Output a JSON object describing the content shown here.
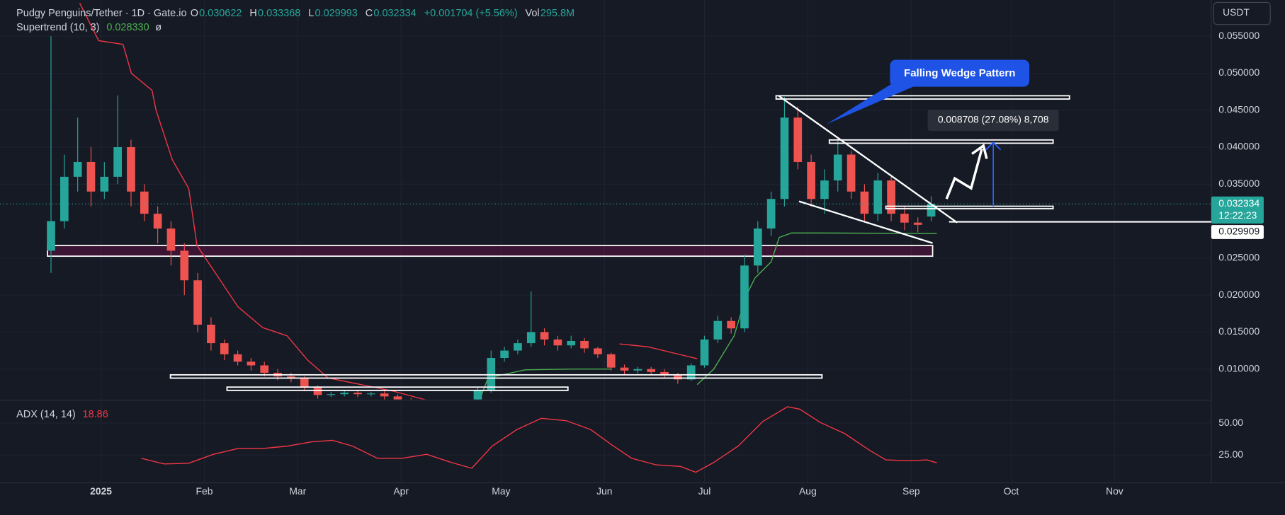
{
  "chart_data": [
    {
      "type": "candlestick",
      "title": "Pudgy Penguins/Tether · 1D · Gate.io",
      "ohlc_labels": [
        "O",
        "H",
        "L",
        "C"
      ],
      "change": "+0.001704 (+5.56%)",
      "volume_label": "Vol",
      "volume": "295.8M",
      "currency": "USDT",
      "countdown": "12:22:23",
      "up_color": "#26a69a",
      "down_color": "#ef5350",
      "x": [
        -15,
        -11,
        -7,
        -3,
        1,
        5,
        9,
        13,
        17,
        21,
        25,
        29,
        33,
        37,
        41,
        45,
        49,
        53,
        57,
        61,
        65,
        69,
        73,
        77,
        81,
        85,
        89,
        93,
        97,
        101,
        105,
        109,
        113,
        117,
        121,
        125,
        129,
        133,
        137,
        141,
        145,
        149,
        153,
        157,
        161,
        165,
        169,
        173,
        177,
        181,
        185,
        189,
        193,
        197,
        201,
        205,
        209,
        213,
        217,
        221,
        225,
        229,
        233,
        237,
        241,
        245,
        249
      ],
      "open": [
        0.026,
        0.03,
        0.036,
        0.038,
        0.034,
        0.036,
        0.04,
        0.034,
        0.031,
        0.029,
        0.026,
        0.022,
        0.016,
        0.0135,
        0.012,
        0.011,
        0.0105,
        0.0095,
        0.009,
        0.0088,
        0.0075,
        0.0065,
        0.0066,
        0.0068,
        0.0066,
        0.0067,
        0.0063,
        0.0058,
        0.0052,
        0.005,
        0.0049,
        0.005,
        0.0052,
        0.0072,
        0.0115,
        0.0125,
        0.0135,
        0.015,
        0.014,
        0.0132,
        0.0138,
        0.0128,
        0.012,
        0.0102,
        0.0098,
        0.01,
        0.0096,
        0.0092,
        0.0086,
        0.0105,
        0.014,
        0.0165,
        0.0155,
        0.024,
        0.029,
        0.033,
        0.044,
        0.038,
        0.033,
        0.0355,
        0.039,
        0.034,
        0.031,
        0.0355,
        0.031,
        0.0298,
        0.030622
      ],
      "high": [
        0.055,
        0.039,
        0.044,
        0.04,
        0.038,
        0.047,
        0.041,
        0.035,
        0.032,
        0.03,
        0.027,
        0.023,
        0.017,
        0.014,
        0.0125,
        0.0115,
        0.011,
        0.01,
        0.0095,
        0.009,
        0.0078,
        0.0069,
        0.0071,
        0.0071,
        0.0069,
        0.007,
        0.0066,
        0.0061,
        0.0055,
        0.0053,
        0.0052,
        0.0054,
        0.0075,
        0.0125,
        0.013,
        0.014,
        0.0205,
        0.0155,
        0.0145,
        0.0145,
        0.0142,
        0.013,
        0.0122,
        0.0106,
        0.0103,
        0.0103,
        0.01,
        0.0095,
        0.0108,
        0.0145,
        0.0172,
        0.017,
        0.0255,
        0.03,
        0.034,
        0.0468,
        0.0455,
        0.039,
        0.037,
        0.041,
        0.0395,
        0.035,
        0.0365,
        0.036,
        0.032,
        0.0305,
        0.033368
      ],
      "low": [
        0.023,
        0.029,
        0.034,
        0.032,
        0.033,
        0.035,
        0.032,
        0.03,
        0.027,
        0.024,
        0.02,
        0.015,
        0.0125,
        0.0112,
        0.0105,
        0.0098,
        0.009,
        0.0085,
        0.0082,
        0.007,
        0.006,
        0.0062,
        0.0063,
        0.0062,
        0.0063,
        0.0059,
        0.0054,
        0.0049,
        0.0047,
        0.0046,
        0.0047,
        0.0049,
        0.005,
        0.0068,
        0.011,
        0.012,
        0.013,
        0.0132,
        0.0125,
        0.0128,
        0.0122,
        0.0115,
        0.0098,
        0.0092,
        0.0094,
        0.0092,
        0.0088,
        0.008,
        0.0084,
        0.0102,
        0.0135,
        0.0148,
        0.015,
        0.023,
        0.028,
        0.032,
        0.037,
        0.032,
        0.031,
        0.034,
        0.033,
        0.03,
        0.03,
        0.03,
        0.0288,
        0.0285,
        0.029993
      ],
      "close": [
        0.03,
        0.036,
        0.038,
        0.034,
        0.036,
        0.04,
        0.034,
        0.031,
        0.029,
        0.026,
        0.022,
        0.016,
        0.0135,
        0.012,
        0.011,
        0.0105,
        0.0095,
        0.009,
        0.0088,
        0.0075,
        0.0065,
        0.0066,
        0.0068,
        0.0066,
        0.0067,
        0.0063,
        0.0058,
        0.0052,
        0.005,
        0.0049,
        0.005,
        0.0052,
        0.0072,
        0.0115,
        0.0125,
        0.0135,
        0.015,
        0.014,
        0.0132,
        0.0138,
        0.0128,
        0.012,
        0.0102,
        0.0098,
        0.01,
        0.0096,
        0.0092,
        0.0086,
        0.0105,
        0.014,
        0.0165,
        0.0155,
        0.024,
        0.029,
        0.033,
        0.044,
        0.038,
        0.033,
        0.0355,
        0.039,
        0.034,
        0.031,
        0.0355,
        0.031,
        0.0298,
        0.0295,
        0.032334
      ],
      "indicator": {
        "label": "Supertrend (10, 3)",
        "value_label": "0.028330",
        "symbol": "ø",
        "series": [
          {
            "color": "#f23645",
            "x": [
              -6.4,
              -0.7,
              6.6,
              9.1,
              15.3,
              16.5,
              21.4,
              26.3,
              28.8,
              33.7,
              41.1,
              48.5,
              55.8,
              62,
              68.1,
              78,
              87.8,
              97.7,
              111.2
            ],
            "values": [
              0.0595,
              0.0544,
              0.0539,
              0.05,
              0.0477,
              0.045,
              0.0383,
              0.0344,
              0.0267,
              0.0234,
              0.0184,
              0.0156,
              0.0145,
              0.0112,
              0.0088,
              0.0079,
              0.007,
              0.0058,
              0.0056
            ]
          },
          {
            "color": "#4caf50",
            "x": [
              111.2,
              113.7,
              116.1,
              127.2,
              141.9,
              153
            ],
            "values": [
              0.0056,
              0.006,
              0.0088,
              0.0099,
              0.01,
              0.01
            ]
          },
          {
            "color": "#f23645",
            "x": [
              155.5,
              164.1,
              171.5,
              178.8
            ],
            "values": [
              0.0134,
              0.013,
              0.0122,
              0.0114
            ]
          },
          {
            "color": "#4caf50",
            "x": [
              178.8,
              183.8,
              189.9,
              193.6,
              196.1,
              201,
              203.4,
              207.1,
              215.7,
              250.7
            ],
            "values": [
              0.0079,
              0.01,
              0.0145,
              0.02,
              0.0223,
              0.0245,
              0.0278,
              0.0284,
              0.0284,
              0.02833
            ]
          }
        ]
      },
      "price_line": {
        "value": 0.029909
      },
      "annotations": {
        "pattern": "Falling Wedge Pattern",
        "measure": "0.008708 (27.08%) 8,708"
      },
      "xlim": [
        -30.3,
        333
      ],
      "xticks": [
        {
          "value": 0,
          "label": "2025"
        },
        {
          "value": 31,
          "label": "Feb"
        },
        {
          "value": 59,
          "label": "Mar"
        },
        {
          "value": 90,
          "label": "Apr"
        },
        {
          "value": 120,
          "label": "May"
        },
        {
          "value": 151,
          "label": "Jun"
        },
        {
          "value": 181,
          "label": "Jul"
        },
        {
          "value": 212,
          "label": "Aug"
        },
        {
          "value": 243,
          "label": "Sep"
        },
        {
          "value": 273,
          "label": "Oct"
        },
        {
          "value": 304,
          "label": "Nov"
        }
      ],
      "ylim": [
        0.0059,
        0.0599
      ],
      "yticks": [
        {
          "value": 0.055,
          "label": "0.055000"
        },
        {
          "value": 0.05,
          "label": "0.050000"
        },
        {
          "value": 0.045,
          "label": "0.045000"
        },
        {
          "value": 0.04,
          "label": "0.040000"
        },
        {
          "value": 0.035,
          "label": "0.035000"
        },
        {
          "value": 0.025,
          "label": "0.025000"
        },
        {
          "value": 0.02,
          "label": "0.020000"
        },
        {
          "value": 0.015,
          "label": "0.015000"
        },
        {
          "value": 0.01,
          "label": "0.010000"
        }
      ],
      "grid": true
    },
    {
      "type": "line",
      "title": "ADX (14, 14)",
      "color": "#f23645",
      "x": [
        12.1,
        18.9,
        26.3,
        33.7,
        41.1,
        48.5,
        55.8,
        63.2,
        69.4,
        75.5,
        82.9,
        90.3,
        97.7,
        105,
        111.2,
        117.3,
        124.7,
        132.1,
        139.5,
        146.9,
        153,
        159.2,
        166.5,
        173.9,
        178.4,
        183.8,
        191.1,
        198.5,
        205.9,
        209.6,
        215.7,
        223.1,
        230.5,
        235.4,
        242.8,
        247.7,
        250.7
      ],
      "values": [
        22.4,
        18,
        18.6,
        25.6,
        30.1,
        30.1,
        32,
        35.3,
        36.5,
        32,
        22.4,
        22.4,
        25.6,
        19.2,
        14.7,
        32,
        44.9,
        53.8,
        51.9,
        44.9,
        33.3,
        22.4,
        17.3,
        16,
        11.5,
        19.2,
        32,
        51.3,
        62.8,
        60.9,
        50.6,
        41.7,
        28.8,
        21.2,
        20.5,
        21.2,
        18.86
      ],
      "ylim": [
        3.2,
        67.3
      ],
      "yticks": [
        {
          "value": 50,
          "label": "50.00"
        },
        {
          "value": 25,
          "label": "25.00"
        }
      ],
      "grid": true
    }
  ]
}
